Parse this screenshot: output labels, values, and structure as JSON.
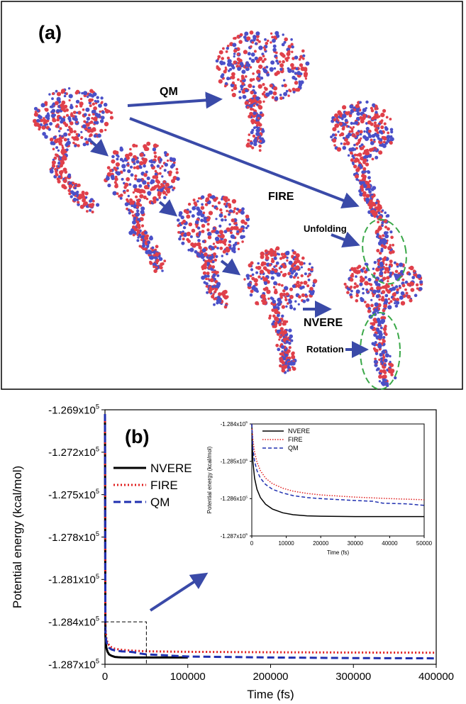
{
  "panel_a": {
    "label": "(a)",
    "annotations": {
      "qm": "QM",
      "fire": "FIRE",
      "nvere": "NVERE",
      "unfolding": "Unfolding",
      "rotation": "Rotation"
    },
    "colors": {
      "arrow": "#3a4aa8",
      "atom_red": "#e0404a",
      "atom_blue": "#4a50c8",
      "ellipse": "#3aa848"
    }
  },
  "chart_data": [
    {
      "type": "line",
      "panel_label": "(b)",
      "title": "",
      "xlabel": "Time (fs)",
      "ylabel": "Potential energy (kcal/mol)",
      "xlim": [
        0,
        400000
      ],
      "ylim": [
        -128700,
        -126900
      ],
      "xticks": [
        0,
        100000,
        200000,
        300000,
        400000
      ],
      "xtick_labels": [
        "0",
        "100000",
        "200000",
        "300000",
        "400000"
      ],
      "yticks": [
        -126900,
        -127200,
        -127500,
        -127800,
        -128100,
        -128400,
        -128700
      ],
      "ytick_labels": [
        "-1.269x10⁵",
        "-1.272x10⁵",
        "-1.275x10⁵",
        "-1.278x10⁵",
        "-1.281x10⁵",
        "-1.284x10⁵",
        "-1.287x10⁵"
      ],
      "legend": "upper-left",
      "zoom_region": {
        "x": [
          0,
          50000
        ],
        "y": [
          -128700,
          -128400
        ]
      },
      "series": [
        {
          "name": "NVERE",
          "color": "#000000",
          "style": "solid",
          "x": [
            0,
            500,
            1500,
            3000,
            5000,
            8000,
            12000,
            16000,
            20000,
            30000,
            50000,
            100000
          ],
          "y": [
            -126930,
            -128500,
            -128580,
            -128610,
            -128630,
            -128640,
            -128648,
            -128650,
            -128651,
            -128652,
            -128652,
            -128652
          ]
        },
        {
          "name": "FIRE",
          "color": "#e02020",
          "style": "dotted",
          "x": [
            0,
            500,
            1500,
            3000,
            5000,
            8000,
            12000,
            20000,
            30000,
            40000,
            50000,
            100000,
            200000,
            300000,
            400000
          ],
          "y": [
            -126930,
            -128440,
            -128510,
            -128545,
            -128565,
            -128580,
            -128590,
            -128597,
            -128602,
            -128605,
            -128608,
            -128612,
            -128615,
            -128617,
            -128618
          ]
        },
        {
          "name": "QM",
          "color": "#2030b0",
          "style": "dashed",
          "x": [
            0,
            500,
            1500,
            3000,
            5000,
            8000,
            12000,
            20000,
            30000,
            35000,
            40000,
            50000,
            100000,
            200000,
            300000,
            400000
          ],
          "y": [
            -126930,
            -128470,
            -128535,
            -128565,
            -128583,
            -128595,
            -128602,
            -128608,
            -128612,
            -128615,
            -128622,
            -128630,
            -128645,
            -128652,
            -128656,
            -128658
          ]
        }
      ]
    },
    {
      "type": "line",
      "title": "",
      "xlabel": "Time (fs)",
      "ylabel": "Potential energy (kcal/mol)",
      "xlim": [
        0,
        50000
      ],
      "ylim": [
        -128700,
        -128400
      ],
      "xticks": [
        0,
        10000,
        20000,
        30000,
        40000,
        50000
      ],
      "xtick_labels": [
        "0",
        "10000",
        "20000",
        "30000",
        "40000",
        "50000"
      ],
      "yticks": [
        -128400,
        -128500,
        -128600,
        -128700
      ],
      "ytick_labels": [
        "-1.284x10⁵",
        "-1.285x10⁵",
        "-1.286x10⁵",
        "-1.287x10⁵"
      ],
      "legend": "upper-left",
      "series": [
        {
          "name": "NVERE",
          "color": "#000000",
          "style": "solid",
          "x": [
            0,
            300,
            800,
            1500,
            2500,
            4000,
            6000,
            9000,
            12000,
            16000,
            20000,
            30000,
            40000,
            50000
          ],
          "y": [
            -128400,
            -128500,
            -128545,
            -128575,
            -128597,
            -128615,
            -128628,
            -128638,
            -128643,
            -128646,
            -128647,
            -128648,
            -128648,
            -128648
          ]
        },
        {
          "name": "FIRE",
          "color": "#e02020",
          "style": "dotted",
          "x": [
            0,
            300,
            800,
            1500,
            2500,
            4000,
            6000,
            9000,
            12000,
            16000,
            20000,
            30000,
            40000,
            50000
          ],
          "y": [
            -128400,
            -128440,
            -128475,
            -128502,
            -128525,
            -128545,
            -128560,
            -128572,
            -128580,
            -128586,
            -128590,
            -128596,
            -128600,
            -128603
          ]
        },
        {
          "name": "QM",
          "color": "#2030b0",
          "style": "dashed",
          "x": [
            0,
            300,
            800,
            1500,
            2500,
            4000,
            6000,
            9000,
            12000,
            16000,
            20000,
            30000,
            35000,
            38000,
            45000,
            50000
          ],
          "y": [
            -128400,
            -128465,
            -128500,
            -128525,
            -128545,
            -128562,
            -128575,
            -128585,
            -128592,
            -128597,
            -128600,
            -128605,
            -128607,
            -128612,
            -128614,
            -128618
          ]
        }
      ]
    }
  ]
}
